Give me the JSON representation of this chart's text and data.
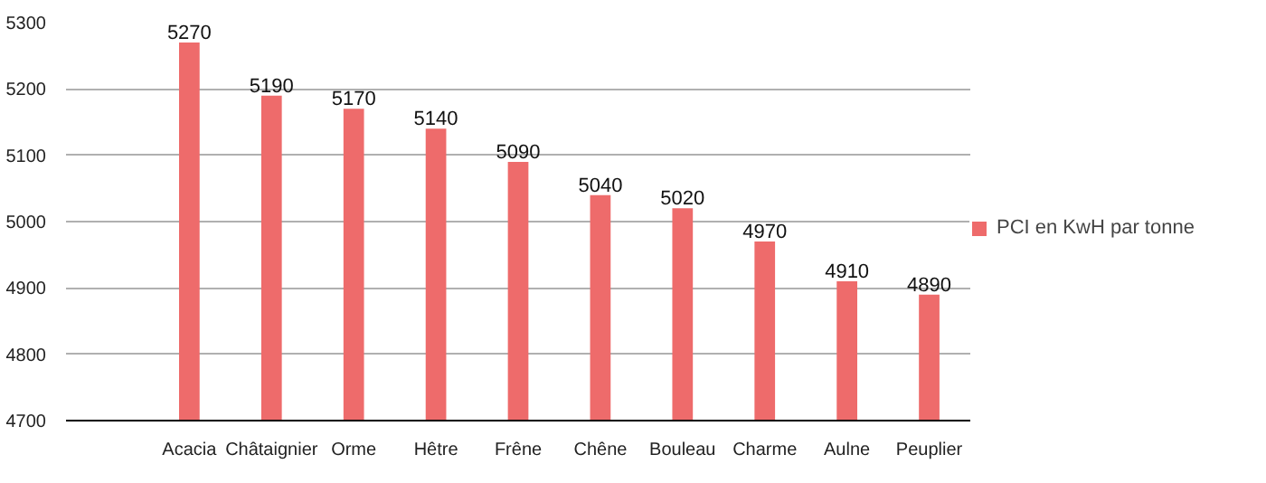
{
  "chart_data": {
    "type": "bar",
    "categories": [
      null,
      "Acacia",
      "Châtaignier",
      "Orme",
      "Hêtre",
      "Frêne",
      "Chêne",
      "Bouleau",
      "Charme",
      "Aulne",
      "Peuplier"
    ],
    "series": [
      {
        "name": "PCI en KwH par tonne",
        "color": "#ee6b6b",
        "values": [
          null,
          5270,
          5190,
          5170,
          5140,
          5090,
          5040,
          5020,
          4970,
          4910,
          4890
        ]
      }
    ],
    "ylim": [
      4700,
      5300
    ],
    "yticks": [
      4700,
      4800,
      4900,
      5000,
      5100,
      5200,
      5300
    ],
    "grid": "y",
    "legend": "right",
    "data_labels": true
  }
}
